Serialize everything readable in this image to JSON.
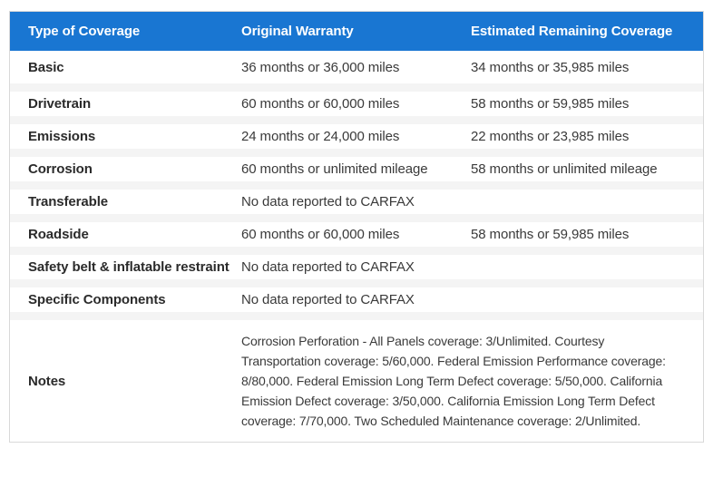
{
  "table": {
    "headers": {
      "type": "Type of Coverage",
      "original": "Original Warranty",
      "remaining": "Estimated Remaining Coverage"
    },
    "rows": [
      {
        "type": "Basic",
        "original": "36 months or 36,000 miles",
        "remaining": "34 months or 35,985 miles"
      },
      {
        "type": "Drivetrain",
        "original": "60 months or 60,000 miles",
        "remaining": "58 months or 59,985 miles"
      },
      {
        "type": "Emissions",
        "original": "24 months or 24,000 miles",
        "remaining": "22 months or 23,985 miles"
      },
      {
        "type": "Corrosion",
        "original": "60 months or unlimited mileage",
        "remaining": "58 months or unlimited mileage"
      },
      {
        "type": "Transferable",
        "original": "No data reported to CARFAX",
        "remaining": ""
      },
      {
        "type": "Roadside",
        "original": "60 months or 60,000 miles",
        "remaining": "58 months or 59,985 miles"
      },
      {
        "type": "Safety belt & inflatable restraint",
        "original": "No data reported to CARFAX",
        "remaining": ""
      },
      {
        "type": "Specific Components",
        "original": "No data reported to CARFAX",
        "remaining": ""
      }
    ],
    "notes": {
      "type": "Notes",
      "text": "Corrosion Perforation - All Panels coverage: 3/Unlimited. Courtesy Transportation coverage: 5/60,000. Federal Emission Performance coverage: 8/80,000. Federal Emission Long Term Defect coverage: 5/50,000. California Emission Defect coverage: 3/50,000. California Emission Long Term Defect coverage: 7/70,000. Two Scheduled Maintenance coverage: 2/Unlimited."
    },
    "colors": {
      "header_bg": "#1976d2",
      "header_text": "#ffffff",
      "row_bg": "#ffffff",
      "separator": "#f4f4f4",
      "border": "#d9d9d9",
      "label_text": "#2b2b2b",
      "value_text": "#3a3a3a"
    }
  }
}
